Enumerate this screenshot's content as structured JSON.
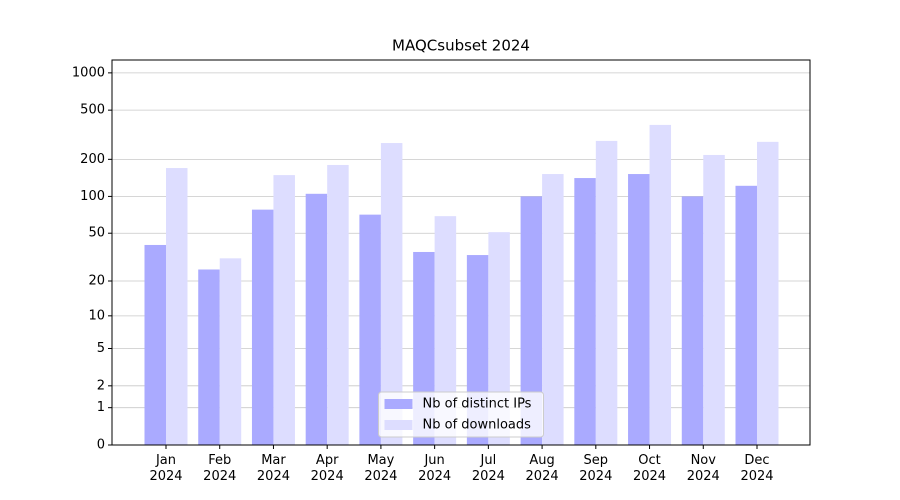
{
  "chart_data": {
    "type": "bar",
    "title": "MAQCsubset 2024",
    "categories": [
      "Jan\n2024",
      "Feb\n2024",
      "Mar\n2024",
      "Apr\n2024",
      "May\n2024",
      "Jun\n2024",
      "Jul\n2024",
      "Aug\n2024",
      "Sep\n2024",
      "Oct\n2024",
      "Nov\n2024",
      "Dec\n2024"
    ],
    "series": [
      {
        "name": "Nb of distinct IPs",
        "color": "#aaaaff",
        "values": [
          40,
          25,
          78,
          105,
          71,
          35,
          33,
          100,
          141,
          152,
          100,
          122
        ]
      },
      {
        "name": "Nb of downloads",
        "color": "#ddddff",
        "values": [
          170,
          31,
          149,
          180,
          271,
          69,
          51,
          152,
          282,
          380,
          217,
          277
        ]
      }
    ],
    "yscale": "log1p",
    "ylim": [
      0,
      1270
    ],
    "yticks": [
      0,
      1,
      2,
      5,
      10,
      20,
      50,
      100,
      200,
      500,
      1000
    ],
    "grid": true,
    "legend": "lower center"
  }
}
